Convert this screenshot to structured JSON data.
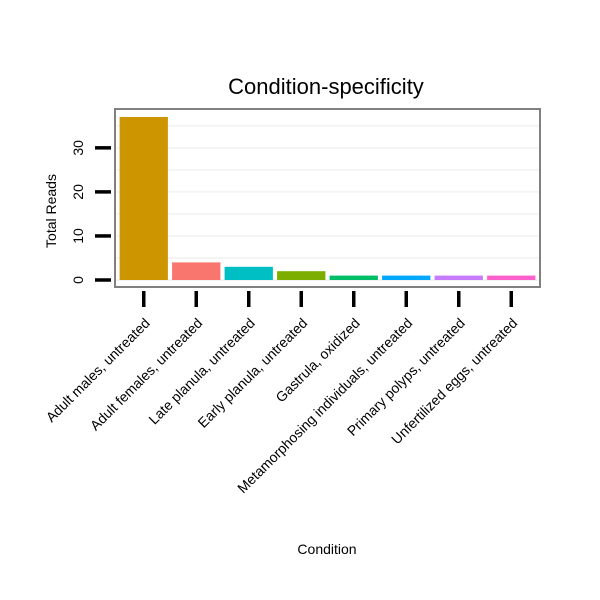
{
  "chart_data": {
    "type": "bar",
    "title": "Condition-specificity",
    "xlabel": "Condition",
    "ylabel": "Total Reads",
    "ylim": [
      0,
      37
    ],
    "yticks": [
      0,
      10,
      20,
      30
    ],
    "grid": true,
    "legend": "none",
    "categories": [
      "Adult males, untreated",
      "Adult females, untreated",
      "Late planula, untreated",
      "Early planula, untreated",
      "Gastrula, oxidized",
      "Metamorphosing individuals, untreated",
      "Primary polyps, untreated",
      "Unfertilized eggs, untreated"
    ],
    "values": [
      37,
      4,
      3,
      2,
      1,
      1,
      1,
      1
    ],
    "colors": [
      "#CD9600",
      "#F8766D",
      "#00BFC4",
      "#7CAE00",
      "#00BE67",
      "#00A9FF",
      "#C77CFF",
      "#FF61CC"
    ]
  }
}
